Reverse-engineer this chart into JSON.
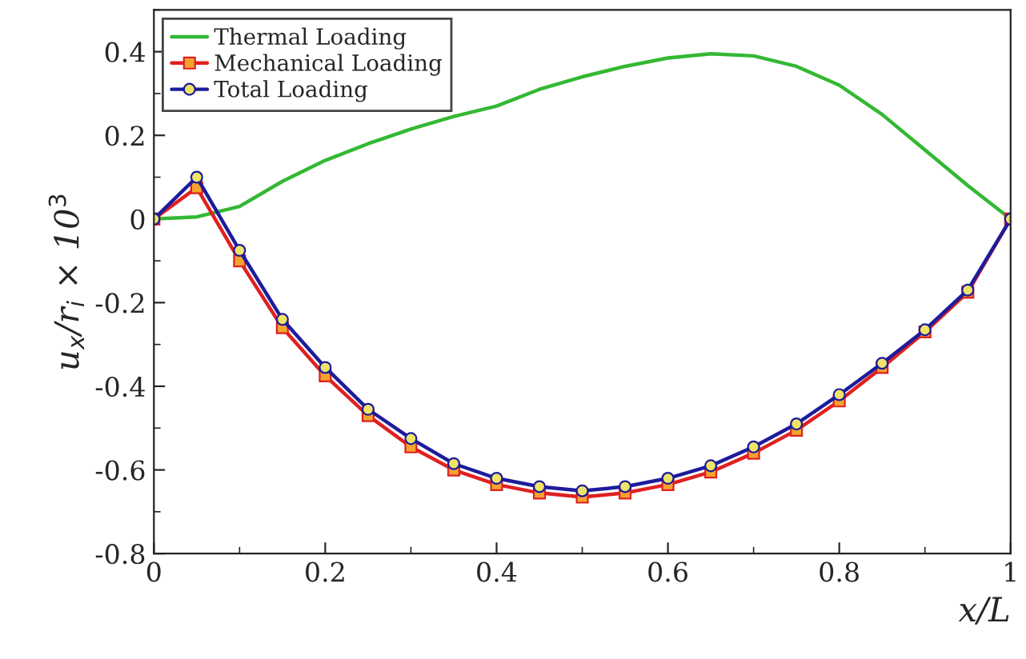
{
  "chart_data": {
    "type": "line",
    "xlabel": "x/L",
    "ylabel": "u$_{x}$/r$_{i}$ × 10$^{3}$",
    "xlim": [
      0,
      1
    ],
    "ylim": [
      -0.8,
      0.5
    ],
    "xticks": [
      0,
      0.2,
      0.4,
      0.6,
      0.8,
      1
    ],
    "yticks": [
      -0.8,
      -0.6,
      -0.4,
      -0.2,
      0,
      0.2,
      0.4
    ],
    "x": [
      0,
      0.05,
      0.1,
      0.15,
      0.2,
      0.25,
      0.3,
      0.35,
      0.4,
      0.45,
      0.5,
      0.55,
      0.6,
      0.65,
      0.7,
      0.75,
      0.8,
      0.85,
      0.9,
      0.95,
      1
    ],
    "grid": false,
    "legend": "top left",
    "series": [
      {
        "name": "Thermal Loading",
        "color": "#33b833",
        "marker": "none",
        "values": [
          0,
          0.005,
          0.03,
          0.09,
          0.14,
          0.18,
          0.215,
          0.245,
          0.27,
          0.31,
          0.34,
          0.365,
          0.385,
          0.395,
          0.39,
          0.365,
          0.32,
          0.25,
          0.165,
          0.08,
          0
        ]
      },
      {
        "name": "Mechanical Loading",
        "color": "#e02020",
        "marker": "square",
        "values": [
          0,
          0.075,
          -0.1,
          -0.26,
          -0.375,
          -0.47,
          -0.545,
          -0.6,
          -0.635,
          -0.655,
          -0.665,
          -0.655,
          -0.635,
          -0.605,
          -0.56,
          -0.505,
          -0.435,
          -0.355,
          -0.27,
          -0.175,
          0
        ]
      },
      {
        "name": "Total Loading",
        "color": "#1c1c9c",
        "marker": "circle",
        "values": [
          0,
          0.1,
          -0.075,
          -0.24,
          -0.355,
          -0.455,
          -0.525,
          -0.585,
          -0.62,
          -0.64,
          -0.65,
          -0.64,
          -0.62,
          -0.59,
          -0.545,
          -0.49,
          -0.42,
          -0.345,
          -0.265,
          -0.17,
          0
        ]
      }
    ]
  }
}
